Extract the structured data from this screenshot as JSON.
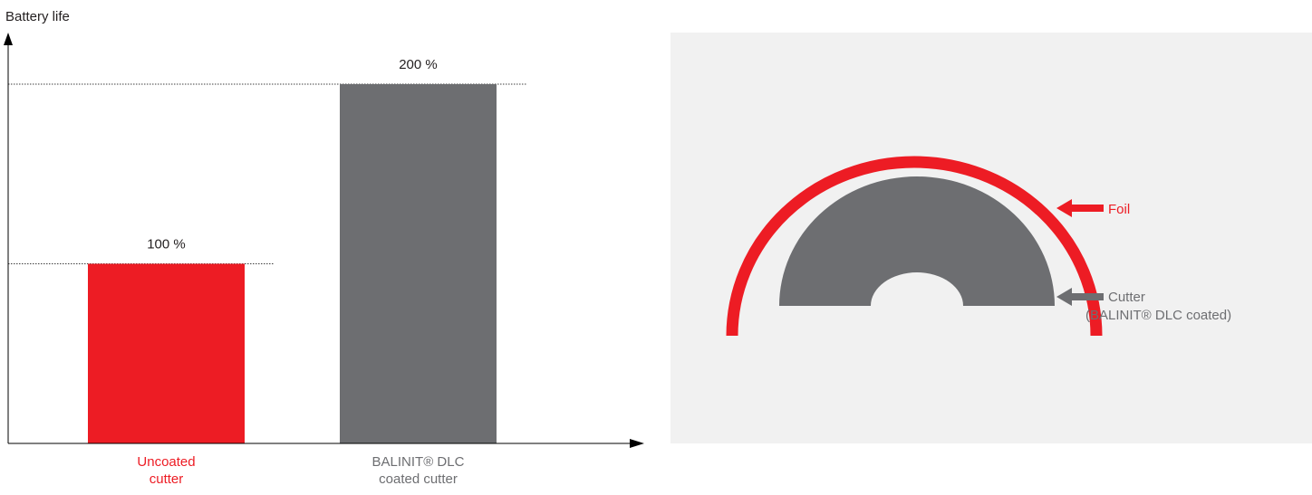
{
  "colors": {
    "red": "#ed1c24",
    "gray": "#6d6e71",
    "panel_bg": "#f1f1f1",
    "axis": "#000000",
    "text": "#231f20"
  },
  "chart_data": {
    "type": "bar",
    "ylabel": "Battery life",
    "ylim": [
      0,
      200
    ],
    "categories": [
      [
        "Uncoated",
        "cutter"
      ],
      [
        "BALINIT® DLC",
        "coated cutter"
      ]
    ],
    "values": [
      100,
      200
    ],
    "value_labels": [
      "100 %",
      "200 %"
    ],
    "bar_colors": [
      "#ed1c24",
      "#6d6e71"
    ],
    "category_label_colors": [
      "#ed1c24",
      "#6d6e71"
    ],
    "grid": false,
    "reference_lines": "dotted lines at each bar top"
  },
  "diagram": {
    "foil_label": "Foil",
    "cutter_label": [
      "Cutter",
      "(BALINIT® DLC coated)"
    ]
  }
}
